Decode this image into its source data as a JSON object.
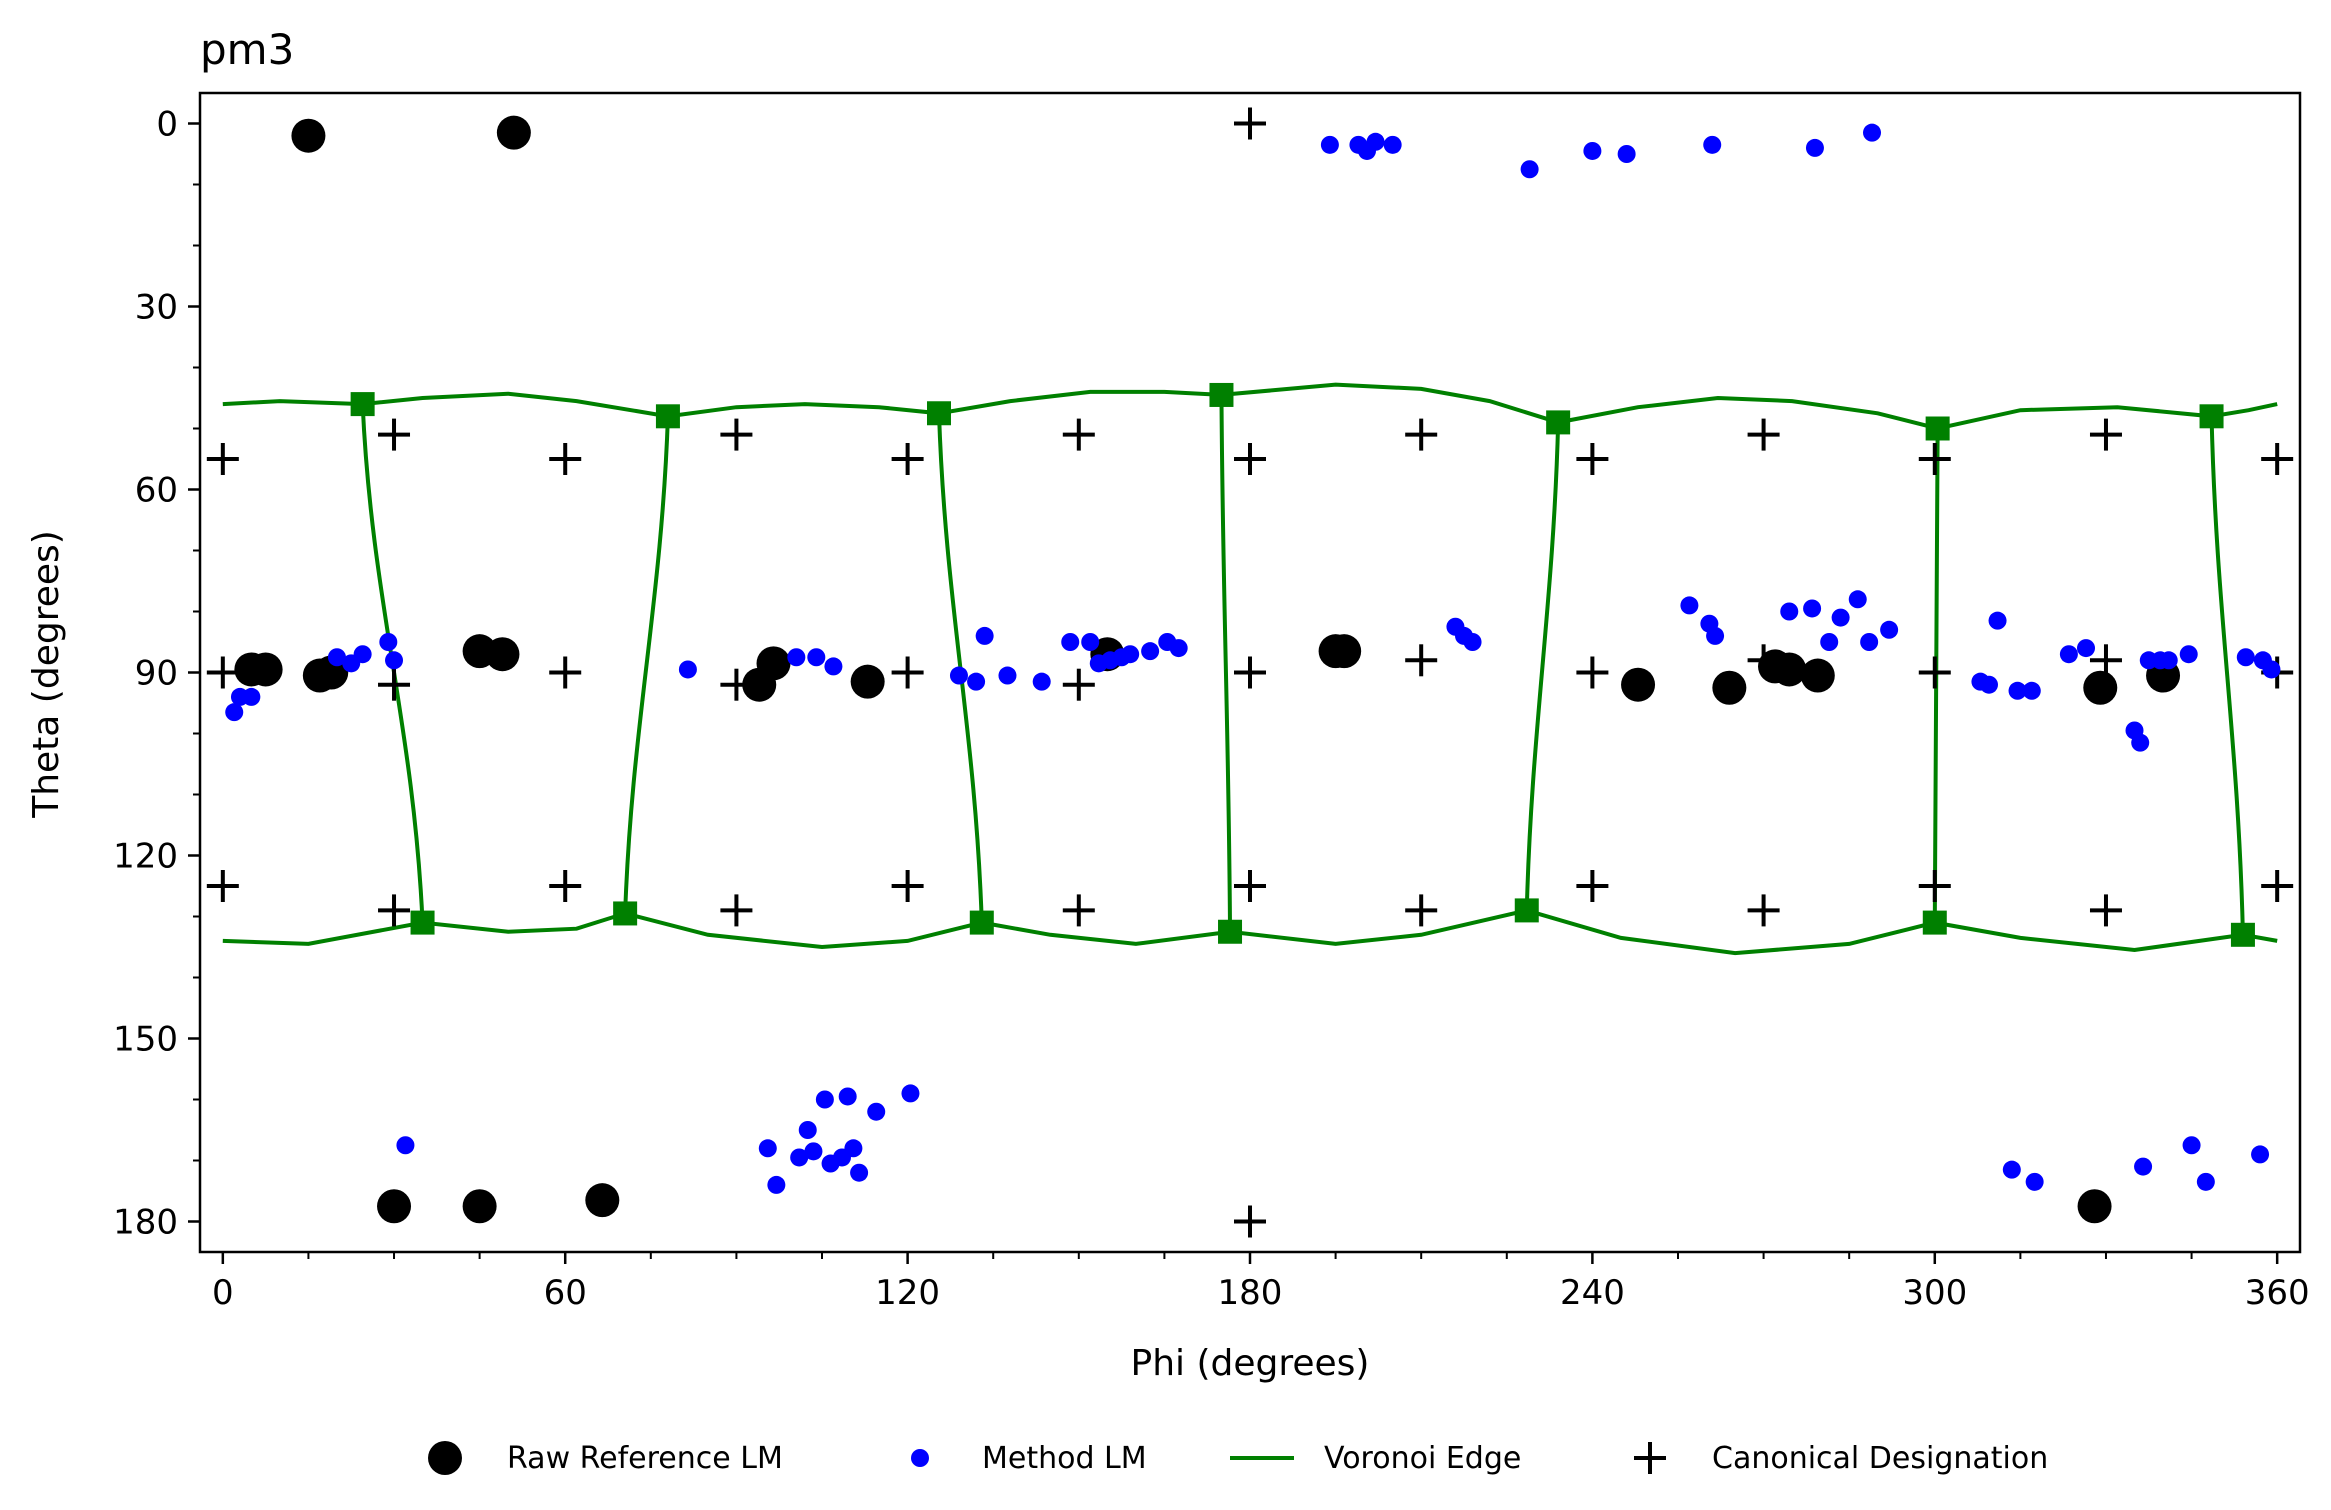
{
  "chart_data": {
    "type": "scatter",
    "title": "pm3",
    "xlabel": "Phi (degrees)",
    "ylabel": "Theta (degrees)",
    "xlim": [
      -4,
      364
    ],
    "ylim": [
      185,
      -5
    ],
    "y_inverted": true,
    "x_ticks": [
      0,
      60,
      120,
      180,
      240,
      300,
      360
    ],
    "y_ticks": [
      0,
      30,
      60,
      90,
      120,
      150,
      180
    ],
    "grid": false,
    "legend_position": "bottom-center",
    "series": [
      {
        "name": "Raw Reference LM",
        "marker": "circle-large",
        "color": "#000000",
        "points": [
          [
            15,
            2
          ],
          [
            51,
            1.5
          ],
          [
            5,
            89.5
          ],
          [
            7.5,
            89.5
          ],
          [
            17,
            90.5
          ],
          [
            19,
            90
          ],
          [
            45,
            86.5
          ],
          [
            49,
            87
          ],
          [
            94,
            92
          ],
          [
            96.5,
            88.5
          ],
          [
            113,
            91.5
          ],
          [
            155,
            87
          ],
          [
            195,
            86.5
          ],
          [
            196.5,
            86.5
          ],
          [
            248,
            92
          ],
          [
            264,
            92.5
          ],
          [
            272,
            89
          ],
          [
            274.5,
            89.5
          ],
          [
            279.5,
            90.5
          ],
          [
            329,
            92.5
          ],
          [
            340,
            90.5
          ],
          [
            30,
            177.5
          ],
          [
            45,
            177.5
          ],
          [
            66.5,
            176.5
          ],
          [
            328,
            177.5
          ]
        ]
      },
      {
        "name": "Method LM",
        "marker": "circle-small",
        "color": "#0000ff",
        "points": [
          [
            194,
            3.5
          ],
          [
            199,
            3.5
          ],
          [
            200.5,
            4.5
          ],
          [
            202,
            3
          ],
          [
            205,
            3.5
          ],
          [
            229,
            7.5
          ],
          [
            240,
            4.5
          ],
          [
            246,
            5
          ],
          [
            261,
            3.5
          ],
          [
            279,
            4
          ],
          [
            289,
            1.5
          ],
          [
            2,
            96.5
          ],
          [
            3,
            94
          ],
          [
            5,
            94
          ],
          [
            20,
            87.5
          ],
          [
            22.5,
            88.5
          ],
          [
            24.5,
            87
          ],
          [
            29,
            85
          ],
          [
            30,
            88
          ],
          [
            81.5,
            89.5
          ],
          [
            100.5,
            87.5
          ],
          [
            104,
            87.5
          ],
          [
            107,
            89
          ],
          [
            129,
            90.5
          ],
          [
            132,
            91.5
          ],
          [
            133.5,
            84
          ],
          [
            137.5,
            90.5
          ],
          [
            143.5,
            91.5
          ],
          [
            148.5,
            85
          ],
          [
            152,
            85
          ],
          [
            153.5,
            88.5
          ],
          [
            155.5,
            88
          ],
          [
            157.5,
            87.5
          ],
          [
            159,
            87
          ],
          [
            162.5,
            86.5
          ],
          [
            165.5,
            85
          ],
          [
            167.5,
            86
          ],
          [
            216,
            82.5
          ],
          [
            217.5,
            84
          ],
          [
            219,
            85
          ],
          [
            257,
            79
          ],
          [
            260.5,
            82
          ],
          [
            261.5,
            84
          ],
          [
            274.5,
            80
          ],
          [
            278.5,
            79.5
          ],
          [
            281.5,
            85
          ],
          [
            283.5,
            81
          ],
          [
            286.5,
            78
          ],
          [
            288.5,
            85
          ],
          [
            292,
            83
          ],
          [
            308,
            91.5
          ],
          [
            309.5,
            92
          ],
          [
            311,
            81.5
          ],
          [
            314.5,
            93
          ],
          [
            317,
            93
          ],
          [
            323.5,
            87
          ],
          [
            326.5,
            86
          ],
          [
            335,
            99.5
          ],
          [
            336,
            101.5
          ],
          [
            337.5,
            88
          ],
          [
            339.5,
            88
          ],
          [
            341,
            88
          ],
          [
            344.5,
            87
          ],
          [
            354.5,
            87.5
          ],
          [
            357.5,
            88
          ],
          [
            359,
            89.5
          ],
          [
            32,
            167.5
          ],
          [
            95.5,
            168
          ],
          [
            97,
            174
          ],
          [
            101,
            169.5
          ],
          [
            102.5,
            165
          ],
          [
            103.5,
            168.5
          ],
          [
            105.5,
            160
          ],
          [
            106.5,
            170.5
          ],
          [
            108.5,
            169.5
          ],
          [
            109.5,
            159.5
          ],
          [
            110.5,
            168
          ],
          [
            111.5,
            172
          ],
          [
            114.5,
            162
          ],
          [
            120.5,
            159
          ],
          [
            313.5,
            171.5
          ],
          [
            317.5,
            173.5
          ],
          [
            336.5,
            171
          ],
          [
            345,
            167.5
          ],
          [
            347.5,
            173.5
          ],
          [
            357,
            169
          ]
        ]
      },
      {
        "name": "Voronoi Edge",
        "marker": "square",
        "color": "#008000",
        "vertices": [
          [
            24.5,
            46
          ],
          [
            78,
            48
          ],
          [
            125.5,
            47.5
          ],
          [
            175,
            44.5
          ],
          [
            234,
            49
          ],
          [
            300.5,
            50
          ],
          [
            348.5,
            48
          ],
          [
            35,
            131
          ],
          [
            70.5,
            129.5
          ],
          [
            133,
            131
          ],
          [
            176.5,
            132.5
          ],
          [
            228.5,
            129
          ],
          [
            300,
            131
          ],
          [
            354,
            133
          ]
        ],
        "top_curve": [
          [
            0,
            46
          ],
          [
            10,
            45.5
          ],
          [
            24.5,
            46
          ],
          [
            35,
            45
          ],
          [
            50,
            44.3
          ],
          [
            62,
            45.5
          ],
          [
            78,
            48
          ],
          [
            90,
            46.5
          ],
          [
            102,
            46
          ],
          [
            115,
            46.5
          ],
          [
            125.5,
            47.5
          ],
          [
            138,
            45.5
          ],
          [
            152,
            44
          ],
          [
            165,
            44
          ],
          [
            175,
            44.5
          ],
          [
            195,
            42.8
          ],
          [
            210,
            43.5
          ],
          [
            222,
            45.5
          ],
          [
            234,
            49
          ],
          [
            248,
            46.5
          ],
          [
            262,
            45
          ],
          [
            275,
            45.5
          ],
          [
            290,
            47.5
          ],
          [
            300.5,
            50
          ],
          [
            315,
            47
          ],
          [
            332,
            46.5
          ],
          [
            348.5,
            48
          ],
          [
            355,
            47
          ],
          [
            360,
            46
          ]
        ],
        "bottom_curve": [
          [
            0,
            134
          ],
          [
            15,
            134.5
          ],
          [
            35,
            131
          ],
          [
            50,
            132.5
          ],
          [
            62,
            132
          ],
          [
            70.5,
            129.5
          ],
          [
            85,
            133
          ],
          [
            105,
            135
          ],
          [
            120,
            134
          ],
          [
            133,
            131
          ],
          [
            145,
            133
          ],
          [
            160,
            134.5
          ],
          [
            176.5,
            132.5
          ],
          [
            195,
            134.5
          ],
          [
            210,
            133
          ],
          [
            228.5,
            129
          ],
          [
            245,
            133.5
          ],
          [
            265,
            136
          ],
          [
            285,
            134.5
          ],
          [
            300,
            131
          ],
          [
            315,
            133.5
          ],
          [
            335,
            135.5
          ],
          [
            354,
            133
          ],
          [
            360,
            134
          ]
        ],
        "vertical_edges": [
          [
            [
              24.5,
              46
            ],
            [
              35,
              131
            ]
          ],
          [
            [
              78,
              48
            ],
            [
              70.5,
              129.5
            ]
          ],
          [
            [
              125.5,
              47.5
            ],
            [
              133,
              131
            ]
          ],
          [
            [
              175,
              44.5
            ],
            [
              176.5,
              132.5
            ]
          ],
          [
            [
              234,
              49
            ],
            [
              228.5,
              129
            ]
          ],
          [
            [
              300.5,
              50
            ],
            [
              300,
              131
            ]
          ],
          [
            [
              348.5,
              48
            ],
            [
              354,
              133
            ]
          ]
        ]
      },
      {
        "name": "Canonical Designation",
        "marker": "plus",
        "color": "#000000",
        "points": [
          [
            180,
            0
          ],
          [
            0,
            55
          ],
          [
            30,
            51
          ],
          [
            60,
            55
          ],
          [
            90,
            51
          ],
          [
            120,
            55
          ],
          [
            150,
            51
          ],
          [
            180,
            55
          ],
          [
            210,
            51
          ],
          [
            240,
            55
          ],
          [
            270,
            51
          ],
          [
            300,
            55
          ],
          [
            330,
            51
          ],
          [
            360,
            55
          ],
          [
            0,
            90
          ],
          [
            30,
            92
          ],
          [
            60,
            90
          ],
          [
            90,
            92
          ],
          [
            120,
            90
          ],
          [
            150,
            92
          ],
          [
            180,
            90
          ],
          [
            210,
            88
          ],
          [
            240,
            90
          ],
          [
            270,
            88
          ],
          [
            300,
            90
          ],
          [
            330,
            88
          ],
          [
            360,
            90
          ],
          [
            0,
            125
          ],
          [
            30,
            129
          ],
          [
            60,
            125
          ],
          [
            90,
            129
          ],
          [
            120,
            125
          ],
          [
            150,
            129
          ],
          [
            180,
            125
          ],
          [
            210,
            129
          ],
          [
            240,
            125
          ],
          [
            270,
            129
          ],
          [
            300,
            125
          ],
          [
            330,
            129
          ],
          [
            360,
            125
          ],
          [
            180,
            180
          ]
        ]
      }
    ]
  }
}
